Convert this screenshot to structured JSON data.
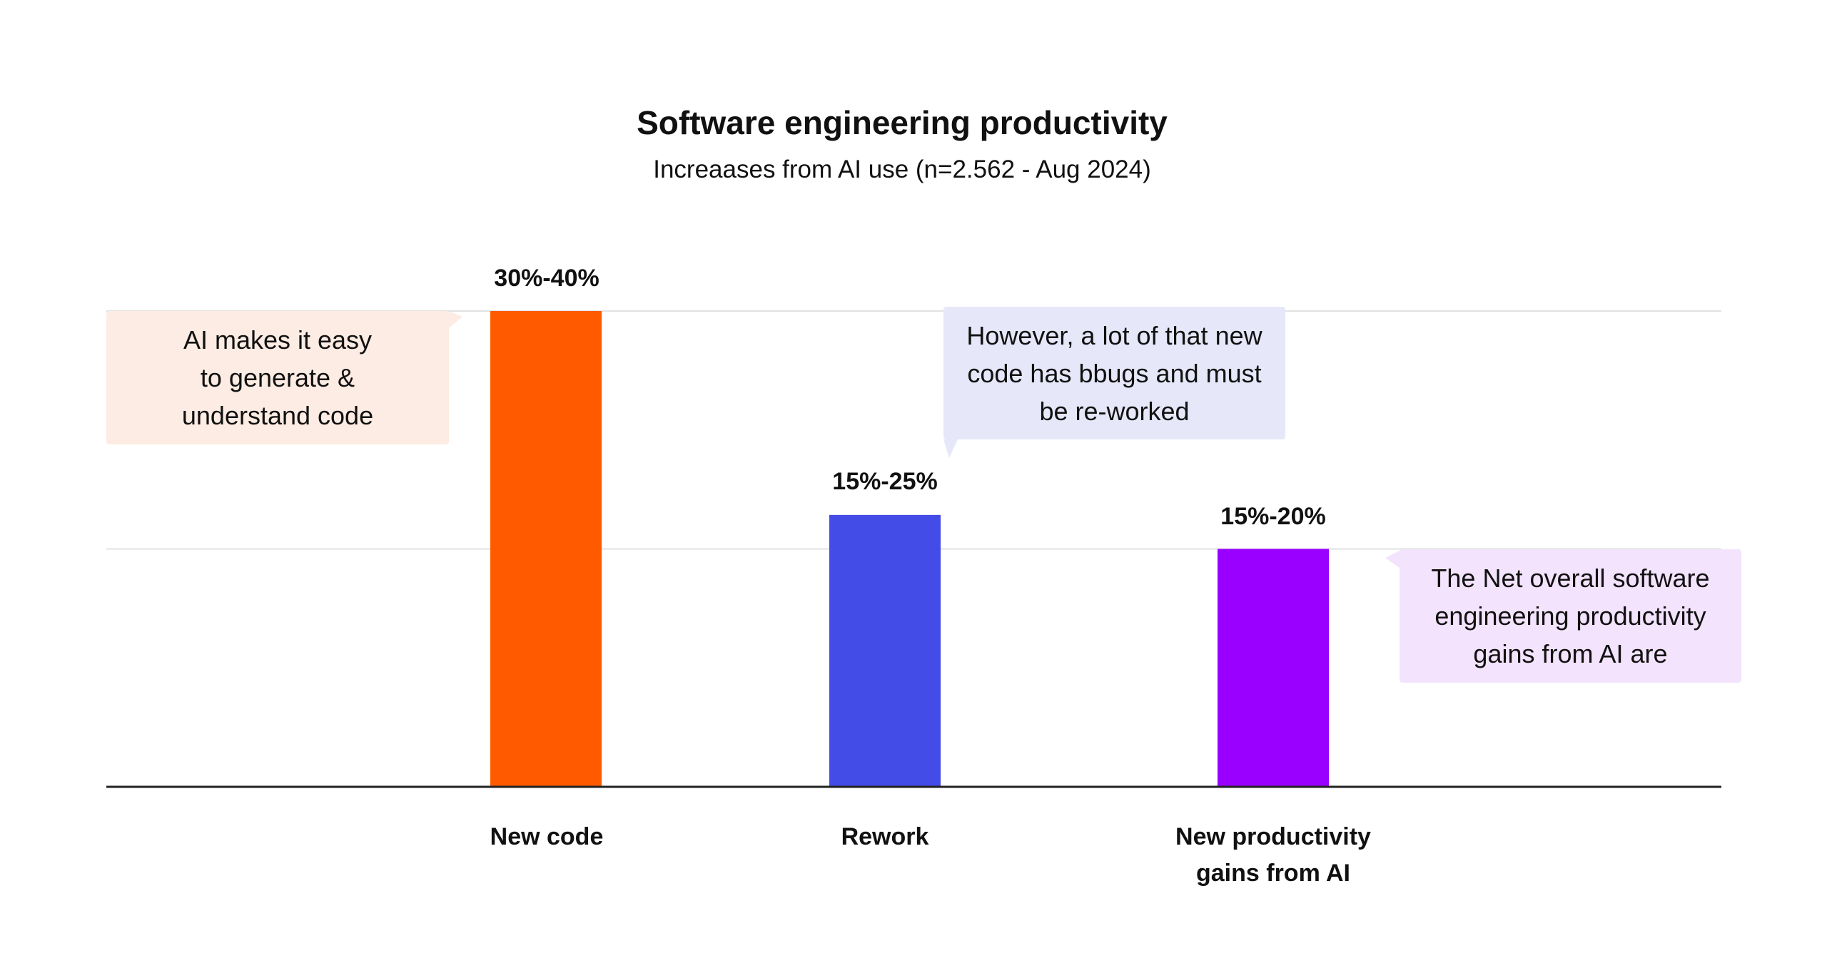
{
  "chart_data": {
    "type": "bar",
    "title": "Software engineering productivity",
    "subtitle": "Increaases from AI use (n=2.562 - Aug 2024)",
    "categories": [
      "New code",
      "Rework",
      "New productivity gains from AI"
    ],
    "values": [
      35,
      20,
      17.5
    ],
    "value_labels": [
      "30%-40%",
      "15%-25%",
      "15%-20%"
    ],
    "colors": [
      "#ff5a00",
      "#434ce6",
      "#9900ff"
    ],
    "ylim": [
      0,
      35
    ],
    "gridlines": [
      17.5,
      35
    ],
    "grid": true,
    "xlabel": "",
    "ylabel": "",
    "annotations": [
      {
        "text": "AI makes it easy to generate & understand code",
        "color": "#fdece3"
      },
      {
        "text": "However, a lot of that new code has bbugs and must be re-worked",
        "color": "#e6e7f8"
      },
      {
        "text": "The Net overall software engineering productivity gains from AI are",
        "color": "#f3e3fc"
      }
    ]
  }
}
